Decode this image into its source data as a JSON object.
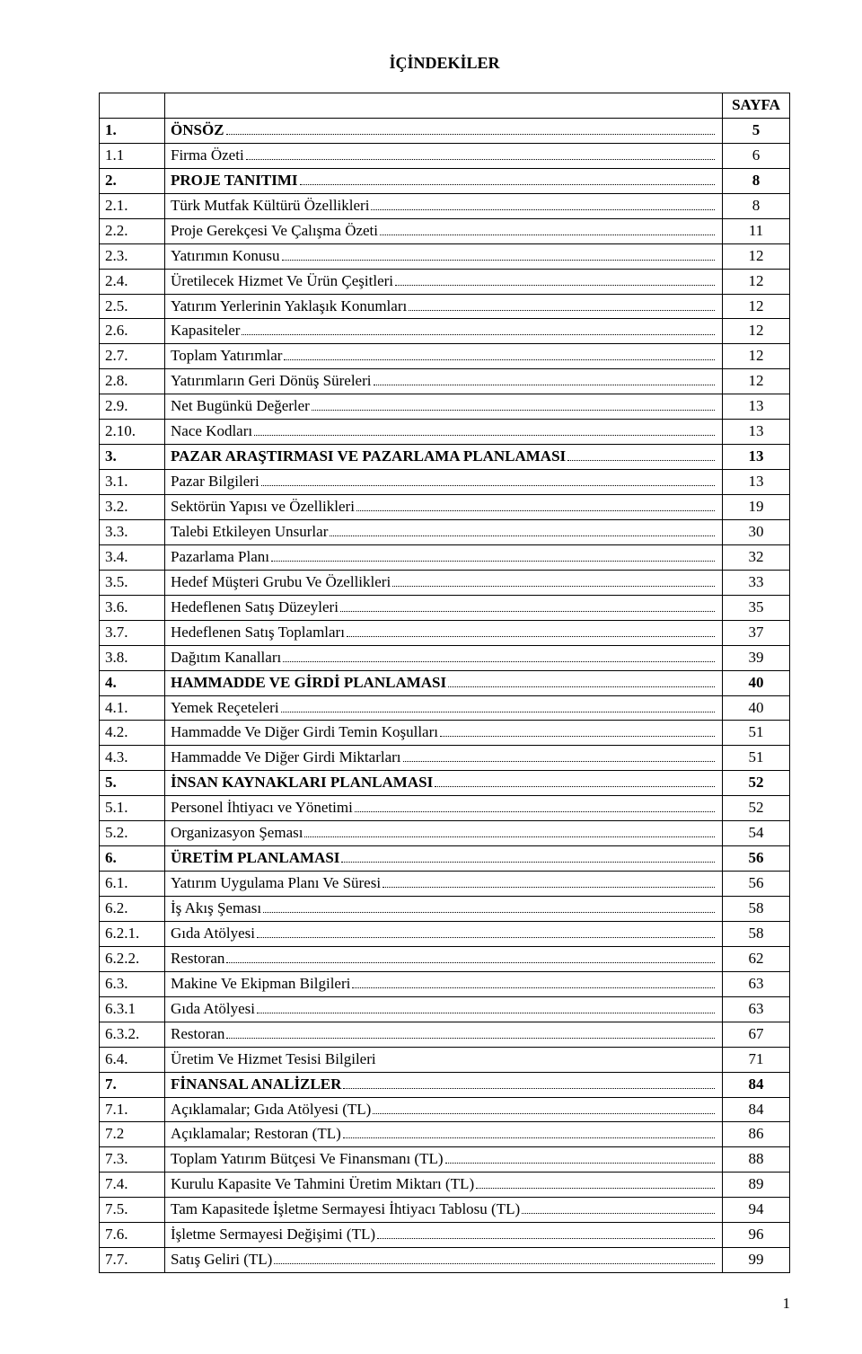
{
  "title": "İÇİNDEKİLER",
  "page_col_header": "SAYFA",
  "footer_page": "1",
  "rows": [
    {
      "num": "1.",
      "name": "ÖNSÖZ",
      "page": "5",
      "bold": true
    },
    {
      "num": "1.1",
      "name": "Firma Özeti",
      "page": "6",
      "bold": false
    },
    {
      "num": "2.",
      "name": "PROJE TANITIMI",
      "page": "8",
      "bold": true
    },
    {
      "num": "2.1.",
      "name": "Türk Mutfak Kültürü Özellikleri",
      "page": "8",
      "bold": false
    },
    {
      "num": "2.2.",
      "name": "Proje Gerekçesi Ve Çalışma Özeti",
      "page": "11",
      "bold": false
    },
    {
      "num": "2.3.",
      "name": "Yatırımın Konusu",
      "page": "12",
      "bold": false
    },
    {
      "num": "2.4.",
      "name": "Üretilecek Hizmet Ve Ürün Çeşitleri",
      "page": "12",
      "bold": false
    },
    {
      "num": "2.5.",
      "name": "Yatırım Yerlerinin Yaklaşık Konumları",
      "page": "12",
      "bold": false
    },
    {
      "num": "2.6.",
      "name": "Kapasiteler",
      "page": "12",
      "bold": false
    },
    {
      "num": "2.7.",
      "name": "Toplam Yatırımlar",
      "page": "12",
      "bold": false
    },
    {
      "num": "2.8.",
      "name": "Yatırımların Geri Dönüş Süreleri",
      "page": "12",
      "bold": false
    },
    {
      "num": "2.9.",
      "name": "Net Bugünkü Değerler",
      "page": "13",
      "bold": false
    },
    {
      "num": "2.10.",
      "name": "Nace Kodları",
      "page": "13",
      "bold": false
    },
    {
      "num": "3.",
      "name": "PAZAR ARAŞTIRMASI VE PAZARLAMA PLANLAMASI",
      "page": "13",
      "bold": true
    },
    {
      "num": "3.1.",
      "name": "Pazar Bilgileri",
      "page": "13",
      "bold": false
    },
    {
      "num": "3.2.",
      "name": "Sektörün Yapısı ve Özellikleri",
      "page": "19",
      "bold": false
    },
    {
      "num": "3.3.",
      "name": "Talebi Etkileyen Unsurlar",
      "page": "30",
      "bold": false
    },
    {
      "num": "3.4.",
      "name": "Pazarlama Planı",
      "page": "32",
      "bold": false
    },
    {
      "num": "3.5.",
      "name": "Hedef Müşteri Grubu Ve Özellikleri",
      "page": "33",
      "bold": false
    },
    {
      "num": "3.6.",
      "name": "Hedeflenen Satış Düzeyleri",
      "page": "35",
      "bold": false
    },
    {
      "num": "3.7.",
      "name": "Hedeflenen Satış Toplamları",
      "page": "37",
      "bold": false
    },
    {
      "num": "3.8.",
      "name": "Dağıtım Kanalları",
      "page": "39",
      "bold": false
    },
    {
      "num": "4.",
      "name": "HAMMADDE VE GİRDİ PLANLAMASI",
      "page": "40",
      "bold": true
    },
    {
      "num": "4.1.",
      "name": "Yemek Reçeteleri",
      "page": "40",
      "bold": false
    },
    {
      "num": "4.2.",
      "name": "Hammadde Ve Diğer Girdi Temin Koşulları",
      "page": "51",
      "bold": false
    },
    {
      "num": "4.3.",
      "name": "Hammadde Ve Diğer Girdi Miktarları",
      "page": "51",
      "bold": false
    },
    {
      "num": "5.",
      "name": "İNSAN KAYNAKLARI PLANLAMASI",
      "page": "52",
      "bold": true
    },
    {
      "num": "5.1.",
      "name": "Personel İhtiyacı ve Yönetimi",
      "page": "52",
      "bold": false
    },
    {
      "num": "5.2.",
      "name": "Organizasyon Şeması",
      "page": "54",
      "bold": false
    },
    {
      "num": "6.",
      "name": "ÜRETİM PLANLAMASI",
      "page": "56",
      "bold": true
    },
    {
      "num": "6.1.",
      "name": "Yatırım Uygulama Planı Ve Süresi",
      "page": "56",
      "bold": false
    },
    {
      "num": "6.2.",
      "name": "İş Akış Şeması",
      "page": "58",
      "bold": false
    },
    {
      "num": "6.2.1.",
      "name": "Gıda Atölyesi",
      "page": "58",
      "bold": false
    },
    {
      "num": "6.2.2.",
      "name": "Restoran",
      "page": "62",
      "bold": false
    },
    {
      "num": "6.3.",
      "name": "Makine Ve Ekipman Bilgileri",
      "page": "63",
      "bold": false
    },
    {
      "num": "6.3.1",
      "name": "Gıda Atölyesi",
      "page": "63",
      "bold": false
    },
    {
      "num": "6.3.2.",
      "name": "Restoran",
      "page": "67",
      "bold": false
    },
    {
      "num": "6.4.",
      "name": "Üretim Ve Hizmet Tesisi Bilgileri",
      "page": "71",
      "bold": false,
      "nodots": true
    },
    {
      "num": "7.",
      "name": "FİNANSAL ANALİZLER",
      "page": "84",
      "bold": true
    },
    {
      "num": "7.1.",
      "name": "Açıklamalar; Gıda Atölyesi (TL)",
      "page": "84",
      "bold": false
    },
    {
      "num": "7.2",
      "name": "Açıklamalar; Restoran (TL)",
      "page": "86",
      "bold": false
    },
    {
      "num": "7.3.",
      "name": "Toplam Yatırım Bütçesi Ve Finansmanı (TL)",
      "page": "88",
      "bold": false
    },
    {
      "num": "7.4.",
      "name": "Kurulu Kapasite Ve Tahmini Üretim Miktarı (TL)",
      "page": "89",
      "bold": false
    },
    {
      "num": "7.5.",
      "name": "Tam Kapasitede İşletme Sermayesi İhtiyacı Tablosu (TL)",
      "page": "94",
      "bold": false
    },
    {
      "num": "7.6.",
      "name": "İşletme Sermayesi Değişimi (TL)",
      "page": "96",
      "bold": false
    },
    {
      "num": "7.7.",
      "name": "Satış Geliri (TL)",
      "page": "99",
      "bold": false
    }
  ]
}
